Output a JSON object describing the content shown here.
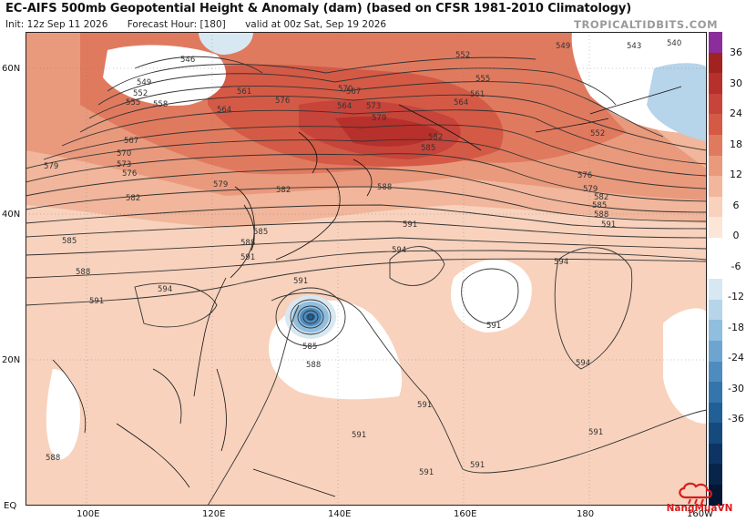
{
  "header": {
    "title": "EC-AIFS 500mb Geopotential Height & Anomaly (dam) (based on CFSR 1981-2010 Climatology)",
    "init": "Init: 12z Sep 11 2026",
    "forecast_hour": "Forecast Hour: [180]",
    "valid": "valid at 00z Sat, Sep 19 2026",
    "brand": "TROPICALTIDBITS.COM"
  },
  "map": {
    "lat_labels": [
      "60N",
      "40N",
      "20N",
      "EQ"
    ],
    "lon_labels": [
      "100E",
      "120E",
      "140E",
      "160E",
      "180",
      "160W"
    ],
    "contour_labels": [
      "546",
      "549",
      "552",
      "555",
      "558",
      "561",
      "564",
      "567",
      "570",
      "573",
      "576",
      "579",
      "582",
      "585",
      "588",
      "591",
      "594",
      "540",
      "543"
    ],
    "cyclone": {
      "label": "Tropical cyclone",
      "center_contour": "585",
      "outer_contour": "588"
    }
  },
  "colorbar": {
    "ticks": [
      "36",
      "30",
      "24",
      "18",
      "12",
      "6",
      "0",
      "-6",
      "-12",
      "-18",
      "-24",
      "-30",
      "-36"
    ],
    "colors": [
      "#8b2d9a",
      "#a1231f",
      "#b7302b",
      "#c6443a",
      "#d45a46",
      "#e07a5f",
      "#e99a7d",
      "#f1b69b",
      "#f8d2bd",
      "#fbe6d8",
      "#ffffff",
      "#ffffff",
      "#d8e8f3",
      "#b6d4ea",
      "#8fbedf",
      "#6ea5d0",
      "#4e8cbf",
      "#3575ad",
      "#215f97",
      "#164a7d",
      "#0d3463",
      "#08244a",
      "#041633"
    ]
  },
  "logo": {
    "text": "NangMuaVN"
  }
}
